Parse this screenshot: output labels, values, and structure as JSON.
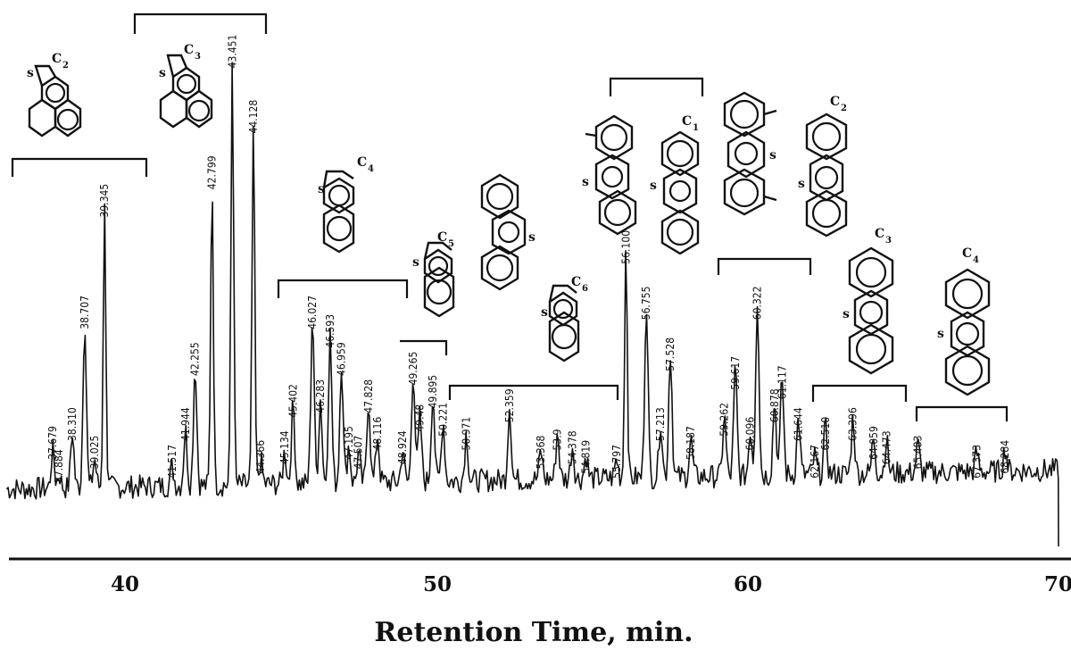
{
  "chart_data": {
    "type": "line",
    "title": "",
    "xlabel": "Retention Time, min.",
    "ylabel": "",
    "xlim": [
      36.2,
      70
    ],
    "ylim": [
      0,
      100
    ],
    "x_ticks": [
      40,
      50,
      60,
      70
    ],
    "grid": false,
    "legend": "none",
    "peaks": [
      {
        "x": 37.679,
        "y": 8,
        "label": "37.679"
      },
      {
        "x": 37.884,
        "y": 3,
        "label": "37.884"
      },
      {
        "x": 38.31,
        "y": 12,
        "label": "38.310"
      },
      {
        "x": 38.707,
        "y": 36,
        "label": "38.707"
      },
      {
        "x": 39.025,
        "y": 6,
        "label": "39.025"
      },
      {
        "x": 39.345,
        "y": 60,
        "label": "39.345"
      },
      {
        "x": 41.517,
        "y": 4,
        "label": "41.517"
      },
      {
        "x": 41.944,
        "y": 12,
        "label": "41.944"
      },
      {
        "x": 42.255,
        "y": 26,
        "label": "42.255"
      },
      {
        "x": 42.799,
        "y": 66,
        "label": "42.799"
      },
      {
        "x": 43.451,
        "y": 92,
        "label": "43.451"
      },
      {
        "x": 44.128,
        "y": 78,
        "label": "44.128"
      },
      {
        "x": 44.366,
        "y": 5,
        "label": "44.366"
      },
      {
        "x": 45.134,
        "y": 7,
        "label": "45.134"
      },
      {
        "x": 45.402,
        "y": 17,
        "label": "45.402"
      },
      {
        "x": 46.027,
        "y": 36,
        "label": "46.027"
      },
      {
        "x": 46.283,
        "y": 18,
        "label": "46.283"
      },
      {
        "x": 46.593,
        "y": 32,
        "label": "46.593"
      },
      {
        "x": 46.959,
        "y": 26,
        "label": "46.959"
      },
      {
        "x": 47.195,
        "y": 8,
        "label": "47.195"
      },
      {
        "x": 47.507,
        "y": 6,
        "label": "47.507"
      },
      {
        "x": 47.828,
        "y": 18,
        "label": "47.828"
      },
      {
        "x": 48.116,
        "y": 10,
        "label": "48.116"
      },
      {
        "x": 48.924,
        "y": 7,
        "label": "48.924"
      },
      {
        "x": 49.265,
        "y": 24,
        "label": "49.265"
      },
      {
        "x": 49.48,
        "y": 14,
        "label": "49.48"
      },
      {
        "x": 49.895,
        "y": 19,
        "label": "49.895"
      },
      {
        "x": 50.221,
        "y": 13,
        "label": "50.221"
      },
      {
        "x": 50.971,
        "y": 10,
        "label": "50.971"
      },
      {
        "x": 52.359,
        "y": 16,
        "label": "52.359"
      },
      {
        "x": 53.368,
        "y": 6,
        "label": "53.368"
      },
      {
        "x": 53.9,
        "y": 10,
        "label": "53.9"
      },
      {
        "x": 54.378,
        "y": 7,
        "label": "54.378"
      },
      {
        "x": 54.819,
        "y": 5,
        "label": "54.819"
      },
      {
        "x": 55.797,
        "y": 4,
        "label": "55.797"
      },
      {
        "x": 56.1,
        "y": 50,
        "label": "56.100"
      },
      {
        "x": 56.755,
        "y": 38,
        "label": "56.755"
      },
      {
        "x": 57.213,
        "y": 12,
        "label": "57.213"
      },
      {
        "x": 57.528,
        "y": 27,
        "label": "57.528"
      },
      {
        "x": 58.187,
        "y": 8,
        "label": "58.187"
      },
      {
        "x": 59.262,
        "y": 13,
        "label": "59.262"
      },
      {
        "x": 59.617,
        "y": 23,
        "label": "59.617"
      },
      {
        "x": 60.096,
        "y": 10,
        "label": "60.096"
      },
      {
        "x": 60.322,
        "y": 38,
        "label": "60.322"
      },
      {
        "x": 60.878,
        "y": 16,
        "label": "60.878"
      },
      {
        "x": 61.117,
        "y": 21,
        "label": "61.117"
      },
      {
        "x": 61.644,
        "y": 12,
        "label": "61.644"
      },
      {
        "x": 62.167,
        "y": 4,
        "label": "62.167"
      },
      {
        "x": 62.51,
        "y": 10,
        "label": "62.510"
      },
      {
        "x": 63.396,
        "y": 12,
        "label": "63.396"
      },
      {
        "x": 64.059,
        "y": 8,
        "label": "64.059"
      },
      {
        "x": 64.473,
        "y": 7,
        "label": "64.473"
      },
      {
        "x": 65.483,
        "y": 6,
        "label": "65.483"
      },
      {
        "x": 67.373,
        "y": 4,
        "label": "67.373"
      },
      {
        "x": 68.284,
        "y": 5,
        "label": "68.284"
      }
    ],
    "groups": [
      {
        "label": "C",
        "sub": "2",
        "range": [
          36.2,
          40.7
        ]
      },
      {
        "label": "C",
        "sub": "3",
        "range": [
          40.4,
          44.5
        ]
      },
      {
        "label": "C",
        "sub": "4",
        "range": [
          44.8,
          49.1
        ]
      },
      {
        "label": "C",
        "sub": "5",
        "range": [
          49.2,
          50.5
        ]
      },
      {
        "label": "",
        "sub": "",
        "range": [
          50.6,
          55.9
        ]
      },
      {
        "label": "C",
        "sub": "1",
        "range": [
          56.0,
          58.9
        ]
      },
      {
        "label": "",
        "sub": "",
        "range": [
          59.0,
          62.0
        ]
      },
      {
        "label": "C",
        "sub": "2",
        "range": [
          62.1,
          65.1
        ]
      },
      {
        "label": "C",
        "sub": "3",
        "range": [
          62.1,
          65.1
        ]
      },
      {
        "label": "C",
        "sub": "4",
        "range": [
          65.4,
          68.5
        ]
      },
      {
        "label": "C",
        "sub": "6",
        "range": [
          50.6,
          55.9
        ]
      }
    ]
  },
  "colors": {
    "ink": "#111111",
    "background": "#ffffff"
  }
}
